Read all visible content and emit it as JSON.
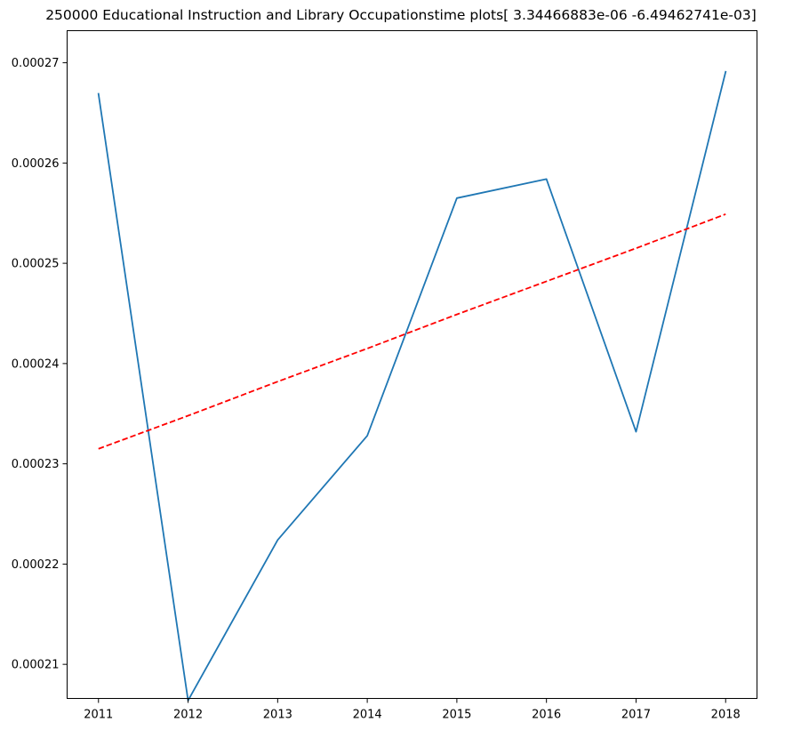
{
  "chart_data": {
    "type": "line",
    "title": "250000 Educational Instruction and Library Occupationstime plots[ 3.34466883e-06 -6.49462741e-03]",
    "xlabel": "",
    "ylabel": "",
    "x": [
      2011,
      2012,
      2013,
      2014,
      2015,
      2016,
      2017,
      2018
    ],
    "x_ticks": [
      "2011",
      "2012",
      "2013",
      "2014",
      "2015",
      "2016",
      "2017",
      "2018"
    ],
    "y_ticks": [
      "0.00021",
      "0.00022",
      "0.00023",
      "0.00024",
      "0.00025",
      "0.00026",
      "0.00027"
    ],
    "y_tick_values": [
      0.00021,
      0.00022,
      0.00023,
      0.00024,
      0.00025,
      0.00026,
      0.00027
    ],
    "xlim": [
      2010.65,
      2018.35
    ],
    "ylim": [
      0.0002066,
      0.0002732
    ],
    "grid": false,
    "series": [
      {
        "values": [
          0.0002669,
          0.0002064,
          0.0002224,
          0.0002328,
          0.0002565,
          0.0002584,
          0.0002332,
          0.0002691
        ],
        "color": "#1f77b4",
        "style": "solid"
      },
      {
        "values": [
          0.0002315,
          0.0002348,
          0.0002382,
          0.0002415,
          0.0002449,
          0.0002482,
          0.0002515,
          0.0002549
        ],
        "color": "#ff0000",
        "style": "dashed"
      }
    ]
  }
}
